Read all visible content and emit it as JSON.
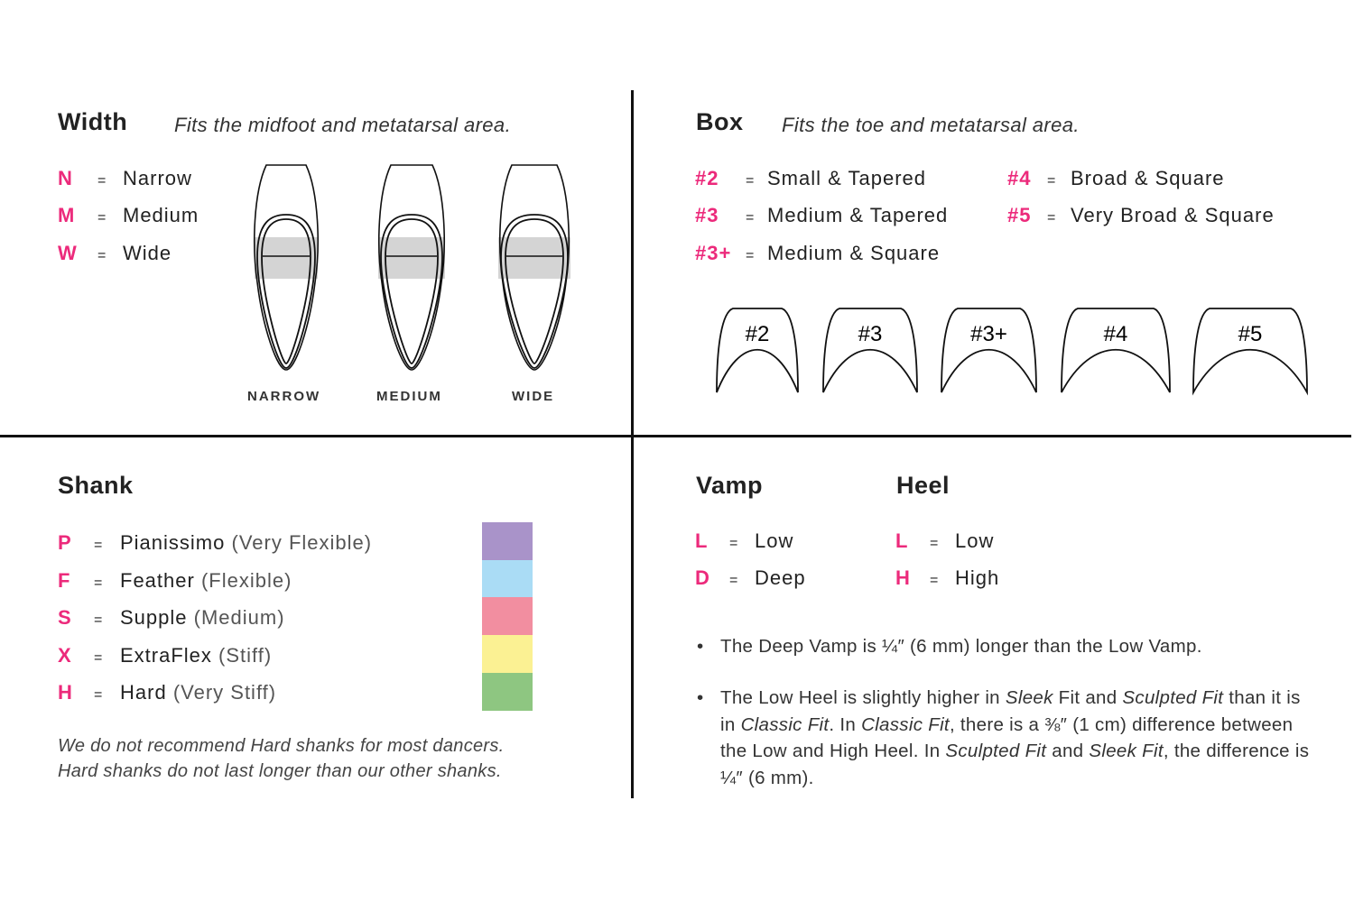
{
  "width": {
    "title": "Width",
    "subtitle": "Fits the midfoot and metatarsal area.",
    "items": [
      {
        "code": "N",
        "label": "Narrow"
      },
      {
        "code": "M",
        "label": "Medium"
      },
      {
        "code": "W",
        "label": "Wide"
      }
    ],
    "diagram_labels": [
      "NARROW",
      "MEDIUM",
      "WIDE"
    ]
  },
  "box": {
    "title": "Box",
    "subtitle": "Fits the toe and metatarsal area.",
    "items": [
      {
        "code": "#2",
        "label": "Small & Tapered"
      },
      {
        "code": "#3",
        "label": "Medium & Tapered"
      },
      {
        "code": "#3+",
        "label": "Medium & Square"
      },
      {
        "code": "#4",
        "label": "Broad & Square"
      },
      {
        "code": "#5",
        "label": "Very Broad & Square"
      }
    ],
    "shape_labels": [
      "#2",
      "#3",
      "#3+",
      "#4",
      "#5"
    ]
  },
  "shank": {
    "title": "Shank",
    "items": [
      {
        "code": "P",
        "label": "Pianissimo",
        "detail": "(Very Flexible)",
        "color": "#a993c9"
      },
      {
        "code": "F",
        "label": "Feather",
        "detail": "(Flexible)",
        "color": "#aadcf5"
      },
      {
        "code": "S",
        "label": "Supple",
        "detail": "(Medium)",
        "color": "#f28ea0"
      },
      {
        "code": "X",
        "label": "ExtraFlex",
        "detail": "(Stiff)",
        "color": "#fbf193"
      },
      {
        "code": "H",
        "label": "Hard",
        "detail": "(Very Stiff)",
        "color": "#8ec681"
      }
    ],
    "note_line1": "We do not recommend Hard shanks for most dancers.",
    "note_line2": "Hard shanks do not last longer than our other shanks."
  },
  "vamp": {
    "title": "Vamp",
    "items": [
      {
        "code": "L",
        "label": "Low"
      },
      {
        "code": "D",
        "label": "Deep"
      }
    ]
  },
  "heel": {
    "title": "Heel",
    "items": [
      {
        "code": "L",
        "label": "Low"
      },
      {
        "code": "H",
        "label": "High"
      }
    ]
  },
  "notes": {
    "bullet1": "The Deep Vamp is ¼″ (6 mm) longer than the Low Vamp.",
    "bullet2": {
      "p1": "The Low Heel is slightly higher in ",
      "i1": "Sleek",
      "p2": " Fit and ",
      "i2": "Sculpted Fit",
      "p3": " than it is in ",
      "i3": "Classic Fit",
      "p4": ". In ",
      "i4": "Classic Fit",
      "p5": ", there is a ⅜″ (1 cm) difference between the Low and High Heel. In ",
      "i5": "Sculpted Fit",
      "p6": " and ",
      "i6": "Sleek Fit",
      "p7": ", the difference is  ¼″ (6 mm)."
    }
  },
  "colors": {
    "accent": "#ec2a7b",
    "divider": "#111111",
    "highlight": "#cfcfcf"
  }
}
